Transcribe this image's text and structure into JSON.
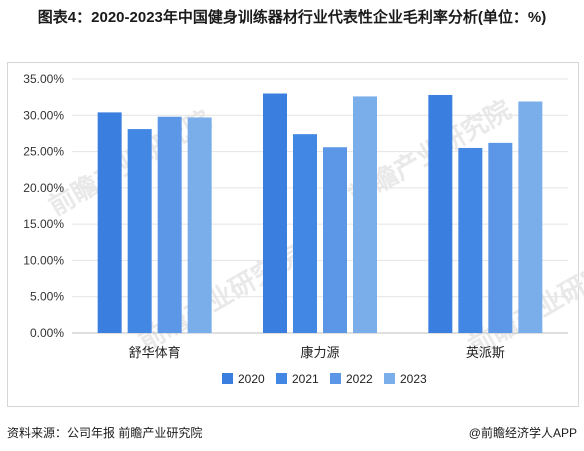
{
  "title": "图表4：2020-2023年中国健身训练器材行业代表性企业毛利率分析(单位：%)",
  "source": "资料来源：公司年报 前瞻产业研究院",
  "brand": "@前瞻经济学人APP",
  "watermark": "前瞻产业研究院",
  "chart_data": {
    "type": "bar",
    "title": "图表4：2020-2023年中国健身训练器材行业代表性企业毛利率分析(单位：%)",
    "xlabel": "",
    "ylabel": "",
    "categories": [
      "舒华体育",
      "康力源",
      "英派斯"
    ],
    "series": [
      {
        "name": "2020",
        "color": "#3a7fe0",
        "values": [
          30.4,
          33.0,
          32.8
        ]
      },
      {
        "name": "2021",
        "color": "#4287e3",
        "values": [
          28.1,
          27.4,
          25.5
        ]
      },
      {
        "name": "2022",
        "color": "#5b97e6",
        "values": [
          29.8,
          25.6,
          26.2
        ]
      },
      {
        "name": "2023",
        "color": "#7aaeea",
        "values": [
          29.7,
          32.6,
          31.9
        ]
      }
    ],
    "ylim": [
      0,
      35
    ],
    "yticks": [
      "0.00%",
      "5.00%",
      "10.00%",
      "15.00%",
      "20.00%",
      "25.00%",
      "30.00%",
      "35.00%"
    ],
    "ytick_values": [
      0,
      5,
      10,
      15,
      20,
      25,
      30,
      35
    ],
    "grid": true,
    "legend_position": "bottom"
  }
}
